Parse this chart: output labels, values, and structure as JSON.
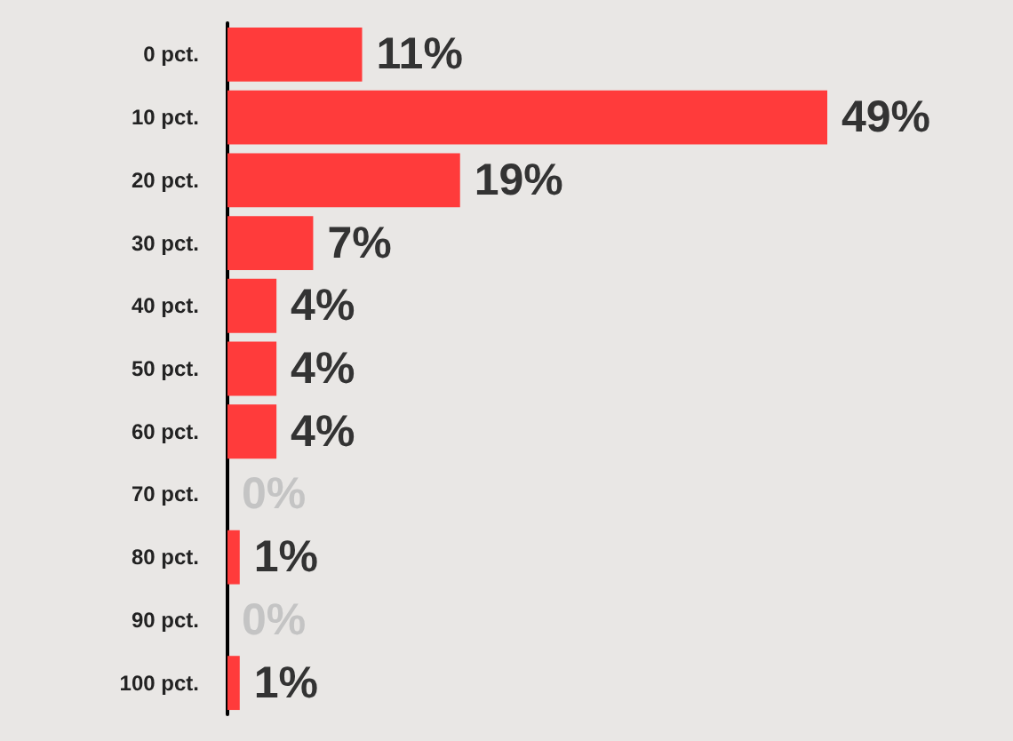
{
  "chart_data": {
    "type": "bar",
    "orientation": "horizontal",
    "categories": [
      "0 pct.",
      "10 pct.",
      "20 pct.",
      "30 pct.",
      "40 pct.",
      "50 pct.",
      "60 pct.",
      "70 pct.",
      "80 pct.",
      "90 pct.",
      "100 pct."
    ],
    "values": [
      11,
      49,
      19,
      7,
      4,
      4,
      4,
      0,
      1,
      0,
      1
    ],
    "value_labels": [
      "11%",
      "49%",
      "19%",
      "7%",
      "4%",
      "4%",
      "4%",
      "0%",
      "1%",
      "0%",
      "1%"
    ],
    "color": "#ff3b3b"
  }
}
